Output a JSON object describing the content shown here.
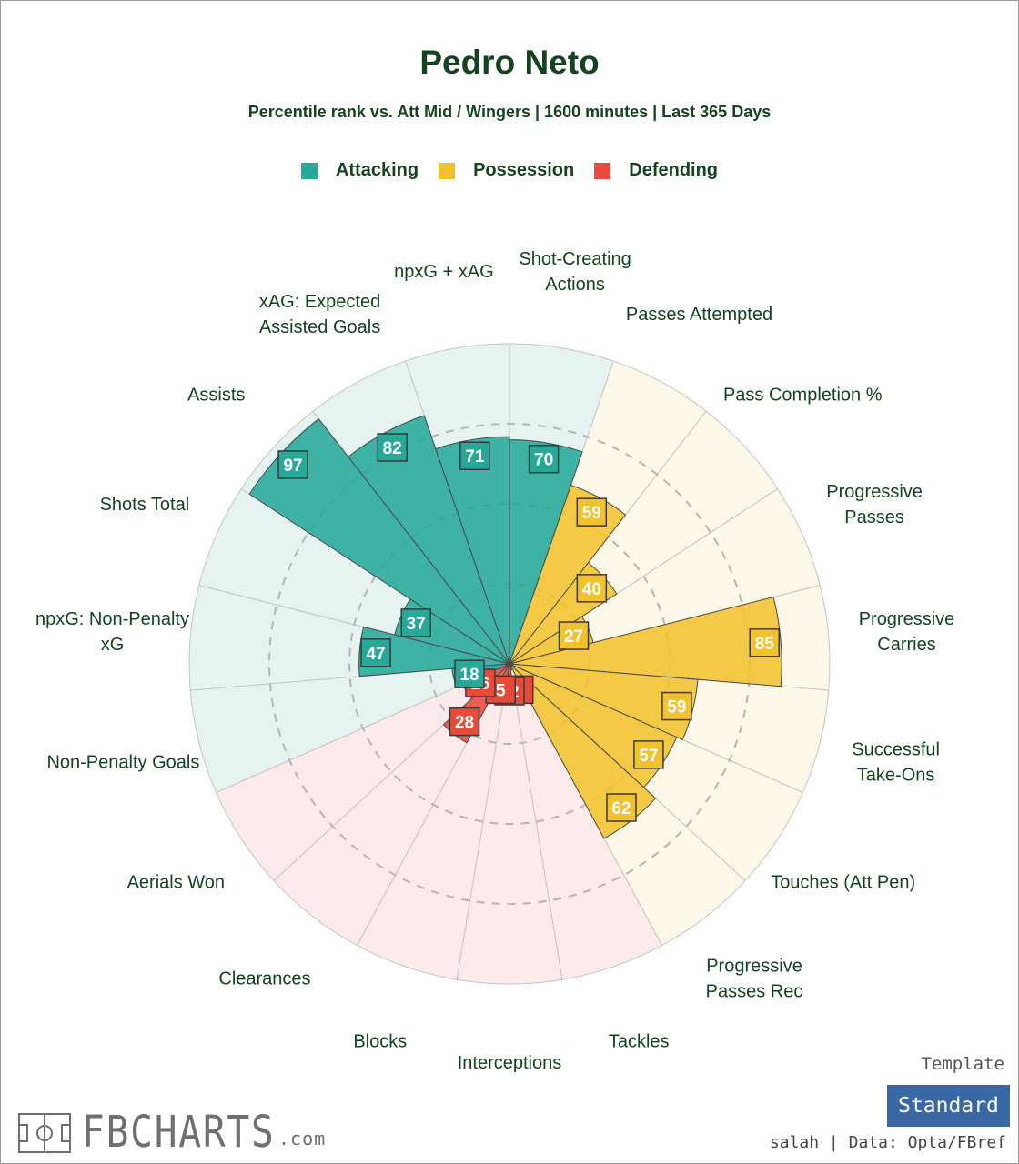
{
  "header": {
    "title": "Pedro Neto",
    "subtitle": "Percentile rank vs. Att Mid / Wingers | 1600 minutes | Last 365 Days"
  },
  "legend": [
    {
      "label": "Attacking",
      "color": "#27a898"
    },
    {
      "label": "Possession",
      "color": "#f2c22e"
    },
    {
      "label": "Defending",
      "color": "#e84a3a"
    }
  ],
  "chart_data": {
    "type": "polar_bar",
    "title": "Pedro Neto",
    "subtitle": "Percentile rank vs. Att Mid / Wingers | 1600 minutes | Last 365 Days",
    "rlim": [
      0,
      100
    ],
    "radial_gridlines": [
      25,
      50,
      75
    ],
    "categories_order": "clockwise from top",
    "groups": [
      {
        "name": "Attacking",
        "color": "#27a898",
        "background": "#e6f4f1"
      },
      {
        "name": "Possession",
        "color": "#f2c22e",
        "background": "#fdf8e8"
      },
      {
        "name": "Defending",
        "color": "#e84a3a",
        "background": "#fcebea"
      }
    ],
    "metrics": [
      {
        "label": "Shot-Creating Actions",
        "value": 70,
        "group": "Attacking"
      },
      {
        "label": "Passes Attempted",
        "value": 59,
        "group": "Possession"
      },
      {
        "label": "Pass Completion %",
        "value": 40,
        "group": "Possession"
      },
      {
        "label": "Progressive Passes",
        "value": 27,
        "group": "Possession"
      },
      {
        "label": "Progressive Carries",
        "value": 85,
        "group": "Possession"
      },
      {
        "label": "Successful Take-Ons",
        "value": 59,
        "group": "Possession"
      },
      {
        "label": "Touches (Att Pen)",
        "value": 57,
        "group": "Possession"
      },
      {
        "label": "Progressive Passes Rec",
        "value": 62,
        "group": "Possession"
      },
      {
        "label": "Tackles",
        "value": 2,
        "group": "Defending"
      },
      {
        "label": "Interceptions",
        "value": 12,
        "group": "Defending"
      },
      {
        "label": "Blocks",
        "value": 5,
        "group": "Defending"
      },
      {
        "label": "Clearances",
        "value": 28,
        "group": "Defending"
      },
      {
        "label": "Aerials Won",
        "value": 16,
        "group": "Defending"
      },
      {
        "label": "Non-Penalty Goals",
        "value": 18,
        "group": "Attacking"
      },
      {
        "label": "npxG: Non-Penalty xG",
        "value": 47,
        "group": "Attacking"
      },
      {
        "label": "Shots Total",
        "value": 37,
        "group": "Attacking"
      },
      {
        "label": "Assists",
        "value": 97,
        "group": "Attacking"
      },
      {
        "label": "xAG: Expected Assisted Goals",
        "value": 82,
        "group": "Attacking"
      },
      {
        "label": "npxG + xAG",
        "value": 71,
        "group": "Attacking"
      }
    ]
  },
  "footer": {
    "brand": "FBCHARTS",
    "brand_suffix": ".com",
    "template_label": "Template",
    "template_button": "Standard",
    "credit": "salah | Data: Opta/FBref"
  }
}
